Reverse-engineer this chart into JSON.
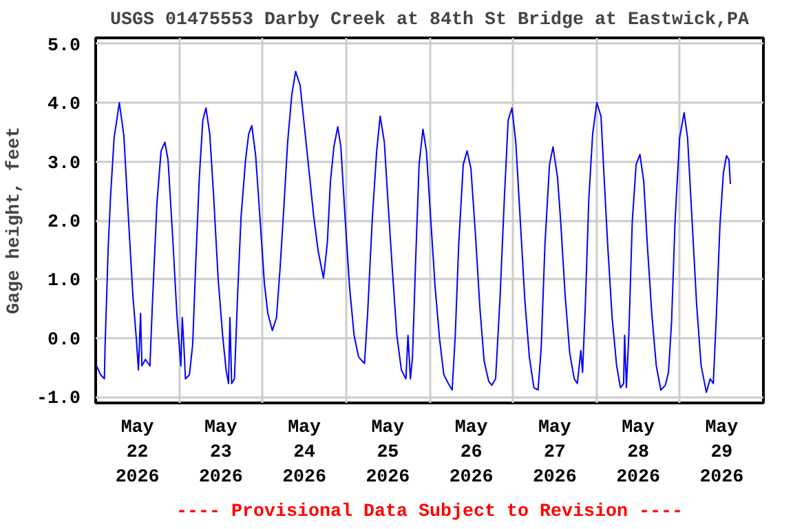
{
  "chart_data": {
    "type": "line",
    "title": "USGS 01475553 Darby Creek at 84th St Bridge at Eastwick,PA",
    "ylabel": "Gage height, feet",
    "annotations": [
      "---- Provisional Data Subject to Revision ----"
    ],
    "xlim": [
      "2026-05-22T00:00",
      "2026-05-30T00:00"
    ],
    "xticks": [
      {
        "value": "2026-05-22T00:00",
        "label": null
      },
      {
        "value": "2026-05-22T12:00",
        "label": "May\n22\n2026"
      },
      {
        "value": "2026-05-23T00:00",
        "label": null
      },
      {
        "value": "2026-05-23T12:00",
        "label": "May\n23\n2026"
      },
      {
        "value": "2026-05-24T00:00",
        "label": null
      },
      {
        "value": "2026-05-24T12:00",
        "label": "May\n24\n2026"
      },
      {
        "value": "2026-05-25T00:00",
        "label": null
      },
      {
        "value": "2026-05-25T12:00",
        "label": "May\n25\n2026"
      },
      {
        "value": "2026-05-26T00:00",
        "label": null
      },
      {
        "value": "2026-05-26T12:00",
        "label": "May\n26\n2026"
      },
      {
        "value": "2026-05-27T00:00",
        "label": null
      },
      {
        "value": "2026-05-27T12:00",
        "label": "May\n27\n2026"
      },
      {
        "value": "2026-05-28T00:00",
        "label": null
      },
      {
        "value": "2026-05-28T12:00",
        "label": "May\n28\n2026"
      },
      {
        "value": "2026-05-29T00:00",
        "label": null
      },
      {
        "value": "2026-05-29T12:00",
        "label": "May\n29\n2026"
      },
      {
        "value": "2026-05-30T00:00",
        "label": null
      }
    ],
    "ylim": [
      -1.1,
      5.1
    ],
    "yticks": [
      {
        "value": -1,
        "label": "-1.0"
      },
      {
        "value": 0,
        "label": "0.0"
      },
      {
        "value": 1,
        "label": "1.0"
      },
      {
        "value": 2,
        "label": "2.0"
      },
      {
        "value": 3,
        "label": "3.0"
      },
      {
        "value": 4,
        "label": "4.0"
      },
      {
        "value": 5,
        "label": "5.0"
      }
    ],
    "grid": true,
    "series": [
      {
        "color": "#0000ff",
        "x": [
          "2026-05-22T00:15",
          "2026-05-22T01:24",
          "2026-05-22T02:30",
          "2026-05-22T02:42",
          "2026-05-22T03:36",
          "2026-05-22T04:18",
          "2026-05-22T05:18",
          "2026-05-22T06:48",
          "2026-05-22T08:06",
          "2026-05-22T09:24",
          "2026-05-22T10:42",
          "2026-05-22T11:42",
          "2026-05-22T12:18",
          "2026-05-22T12:54",
          "2026-05-22T13:18",
          "2026-05-22T14:18",
          "2026-05-22T15:36",
          "2026-05-22T16:18",
          "2026-05-22T17:36",
          "2026-05-22T18:48",
          "2026-05-22T19:54",
          "2026-05-22T20:48",
          "2026-05-22T22:06",
          "2026-05-22T23:24",
          "2026-05-23T00:00",
          "2026-05-23T00:30",
          "2026-05-23T00:54",
          "2026-05-23T01:24",
          "2026-05-23T01:48",
          "2026-05-23T02:58",
          "2026-05-23T03:54",
          "2026-05-23T04:48",
          "2026-05-23T05:48",
          "2026-05-23T06:48",
          "2026-05-23T07:42",
          "2026-05-23T08:48",
          "2026-05-23T09:54",
          "2026-05-23T11:12",
          "2026-05-23T12:30",
          "2026-05-23T13:30",
          "2026-05-23T14:12",
          "2026-05-23T14:36",
          "2026-05-23T15:06",
          "2026-05-23T15:54",
          "2026-05-23T16:48",
          "2026-05-23T17:48",
          "2026-05-23T19:06",
          "2026-05-23T20:00",
          "2026-05-23T20:54",
          "2026-05-23T22:00",
          "2026-05-23T23:18",
          "2026-05-24T00:30",
          "2026-05-24T01:30",
          "2026-05-24T02:48",
          "2026-05-24T04:00",
          "2026-05-24T05:00",
          "2026-05-24T06:06",
          "2026-05-24T07:12",
          "2026-05-24T08:24",
          "2026-05-24T09:30",
          "2026-05-24T10:48",
          "2026-05-24T12:06",
          "2026-05-24T13:24",
          "2026-05-24T14:42",
          "2026-05-24T16:00",
          "2026-05-24T17:30",
          "2026-05-24T18:36",
          "2026-05-24T19:30",
          "2026-05-24T20:30",
          "2026-05-24T21:36",
          "2026-05-24T22:30",
          "2026-05-24T23:42",
          "2026-05-25T01:00",
          "2026-05-25T02:18",
          "2026-05-25T03:36",
          "2026-05-25T05:18",
          "2026-05-25T06:12",
          "2026-05-25T07:30",
          "2026-05-25T08:48",
          "2026-05-25T09:48",
          "2026-05-25T11:00",
          "2026-05-25T12:00",
          "2026-05-25T13:18",
          "2026-05-25T14:36",
          "2026-05-25T15:54",
          "2026-05-25T17:12",
          "2026-05-25T17:48",
          "2026-05-25T18:30",
          "2026-05-25T19:06",
          "2026-05-25T20:00",
          "2026-05-25T21:00",
          "2026-05-25T22:06",
          "2026-05-25T23:06",
          "2026-05-26T00:18",
          "2026-05-26T01:36",
          "2026-05-26T02:54",
          "2026-05-26T04:06",
          "2026-05-26T05:24",
          "2026-05-26T06:30",
          "2026-05-26T07:24",
          "2026-05-26T08:24",
          "2026-05-26T09:42",
          "2026-05-26T10:48",
          "2026-05-26T11:54",
          "2026-05-26T13:12",
          "2026-05-26T14:30",
          "2026-05-26T15:42",
          "2026-05-26T17:00",
          "2026-05-26T17:54",
          "2026-05-26T19:00",
          "2026-05-26T20:18",
          "2026-05-26T21:30",
          "2026-05-26T22:36",
          "2026-05-26T23:42",
          "2026-05-27T00:48",
          "2026-05-27T02:06",
          "2026-05-27T03:24",
          "2026-05-27T04:42",
          "2026-05-27T06:00",
          "2026-05-27T07:12",
          "2026-05-27T08:06",
          "2026-05-27T09:12",
          "2026-05-27T10:30",
          "2026-05-27T11:30",
          "2026-05-27T12:48",
          "2026-05-27T13:42",
          "2026-05-27T15:00",
          "2026-05-27T16:18",
          "2026-05-27T17:36",
          "2026-05-27T18:30",
          "2026-05-27T19:30",
          "2026-05-27T20:00",
          "2026-05-27T20:48",
          "2026-05-27T21:48",
          "2026-05-27T22:54",
          "2026-05-28T00:06",
          "2026-05-28T01:18",
          "2026-05-28T02:12",
          "2026-05-28T03:12",
          "2026-05-28T04:30",
          "2026-05-28T05:48",
          "2026-05-28T06:54",
          "2026-05-28T07:48",
          "2026-05-28T08:06",
          "2026-05-28T08:36",
          "2026-05-28T09:18",
          "2026-05-28T10:18",
          "2026-05-28T11:24",
          "2026-05-28T12:30",
          "2026-05-28T13:36",
          "2026-05-28T14:36",
          "2026-05-28T15:54",
          "2026-05-28T17:12",
          "2026-05-28T18:30",
          "2026-05-28T19:48",
          "2026-05-28T20:42",
          "2026-05-28T21:36",
          "2026-05-28T22:36",
          "2026-05-28T23:54",
          "2026-05-29T01:12",
          "2026-05-29T02:12",
          "2026-05-29T03:30",
          "2026-05-29T04:48",
          "2026-05-29T06:06",
          "2026-05-29T07:36",
          "2026-05-29T08:42",
          "2026-05-29T09:36",
          "2026-05-29T10:30",
          "2026-05-29T11:30",
          "2026-05-29T12:30",
          "2026-05-29T13:24",
          "2026-05-29T14:06",
          "2026-05-29T14:30"
        ],
        "values": [
          -0.47,
          -0.62,
          -0.69,
          -0.13,
          1.54,
          2.43,
          3.4,
          4.0,
          3.44,
          2.06,
          0.72,
          -0.02,
          -0.54,
          0.42,
          -0.47,
          -0.36,
          -0.47,
          0.57,
          2.28,
          3.18,
          3.33,
          3.03,
          1.76,
          0.35,
          -0.1,
          -0.47,
          0.35,
          -0.17,
          -0.69,
          -0.62,
          -0.1,
          1.32,
          2.73,
          3.7,
          3.91,
          3.47,
          2.43,
          1.02,
          0.05,
          -0.54,
          -0.77,
          0.35,
          -0.77,
          -0.69,
          0.72,
          2.06,
          3.03,
          3.47,
          3.61,
          3.1,
          1.99,
          0.94,
          0.42,
          0.13,
          0.35,
          1.17,
          2.21,
          3.33,
          4.14,
          4.53,
          4.29,
          3.55,
          2.81,
          2.06,
          1.47,
          1.02,
          1.61,
          2.66,
          3.25,
          3.59,
          3.25,
          2.06,
          0.87,
          0.05,
          -0.32,
          -0.43,
          0.42,
          1.99,
          3.18,
          3.77,
          3.33,
          2.36,
          1.17,
          0.05,
          -0.54,
          -0.69,
          0.05,
          -0.69,
          -0.32,
          1.32,
          2.95,
          3.55,
          3.18,
          2.06,
          0.87,
          -0.02,
          -0.62,
          -0.77,
          -0.88,
          0.05,
          1.61,
          2.95,
          3.18,
          2.88,
          1.76,
          0.5,
          -0.39,
          -0.73,
          -0.8,
          -0.69,
          0.72,
          2.36,
          3.7,
          3.91,
          3.33,
          1.99,
          0.65,
          -0.32,
          -0.84,
          -0.88,
          -0.17,
          1.61,
          2.95,
          3.25,
          2.73,
          1.99,
          0.72,
          -0.25,
          -0.69,
          -0.77,
          -0.21,
          -0.58,
          0.57,
          2.36,
          3.47,
          4.0,
          3.77,
          2.73,
          1.61,
          0.35,
          -0.47,
          -0.84,
          -0.77,
          0.05,
          -0.84,
          0.05,
          1.99,
          2.95,
          3.12,
          2.66,
          1.61,
          0.42,
          -0.47,
          -0.88,
          -0.8,
          -0.58,
          0.28,
          1.99,
          3.4,
          3.83,
          3.4,
          1.99,
          0.57,
          -0.47,
          -0.92,
          -0.69,
          -0.77,
          0.42,
          1.91,
          2.81,
          3.1,
          3.03,
          2.62
        ]
      }
    ]
  }
}
